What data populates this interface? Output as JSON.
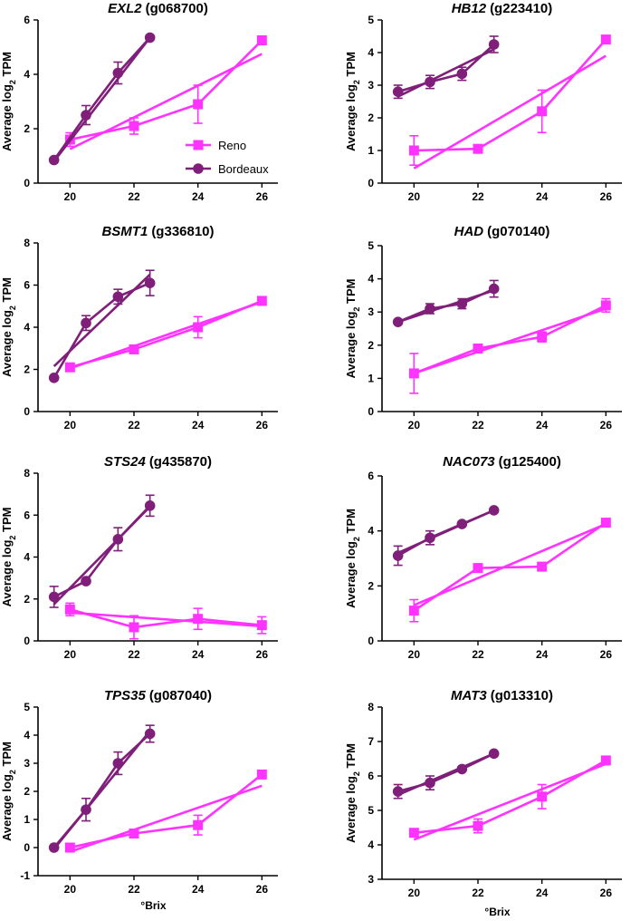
{
  "colors": {
    "reno": "#ff33ff",
    "bordeaux": "#7f1f7a",
    "axis": "#000000"
  },
  "legend": {
    "items": [
      {
        "name": "Reno",
        "marker": "square"
      },
      {
        "name": "Bordeaux",
        "marker": "circle"
      }
    ]
  },
  "x_axis_title": "°Brix",
  "chart_data": [
    {
      "type": "line",
      "gene": "EXL2",
      "gene_id": "(g068700)",
      "ylabel": "Average log",
      "ylabel_sub": "2",
      "ylabel_suffix": " TPM",
      "xlim": [
        19,
        26.5
      ],
      "xticks": [
        "20",
        "22",
        "24",
        "26"
      ],
      "ylim": [
        0,
        6
      ],
      "yticks": [
        "0",
        "2",
        "4",
        "6"
      ],
      "series": [
        {
          "name": "Reno",
          "x": [
            20,
            22,
            24,
            26
          ],
          "y": [
            1.6,
            2.1,
            2.9,
            5.25
          ],
          "err": [
            0.25,
            0.3,
            0.7,
            0.1
          ],
          "fit": [
            [
              20,
              1.25
            ],
            [
              26,
              4.75
            ]
          ]
        },
        {
          "name": "Bordeaux",
          "x": [
            19.5,
            20.5,
            21.5,
            22.5
          ],
          "y": [
            0.85,
            2.5,
            4.05,
            5.35
          ],
          "err": [
            0,
            0.35,
            0.4,
            0
          ],
          "fit": [
            [
              19.5,
              0.8
            ],
            [
              22.5,
              5.35
            ]
          ]
        }
      ]
    },
    {
      "type": "line",
      "gene": "HB12",
      "gene_id": "(g223410)",
      "ylabel": "Average log",
      "ylabel_sub": "2",
      "ylabel_suffix": " TPM",
      "xlim": [
        19,
        26.5
      ],
      "xticks": [
        "20",
        "22",
        "24",
        "26"
      ],
      "ylim": [
        0,
        5
      ],
      "yticks": [
        "0",
        "1",
        "2",
        "3",
        "4",
        "5"
      ],
      "series": [
        {
          "name": "Reno",
          "x": [
            20,
            22,
            24,
            26
          ],
          "y": [
            1.0,
            1.05,
            2.2,
            4.4
          ],
          "err": [
            0.45,
            0.05,
            0.65,
            0.05
          ],
          "fit": [
            [
              20,
              0.45
            ],
            [
              26,
              3.9
            ]
          ]
        },
        {
          "name": "Bordeaux",
          "x": [
            19.5,
            20.5,
            21.5,
            22.5
          ],
          "y": [
            2.8,
            3.1,
            3.35,
            4.25
          ],
          "err": [
            0.2,
            0.2,
            0.2,
            0.25
          ],
          "fit": [
            [
              19.5,
              2.65
            ],
            [
              22.5,
              4.1
            ]
          ]
        }
      ]
    },
    {
      "type": "line",
      "gene": "BSMT1",
      "gene_id": "(g336810)",
      "ylabel": "Average log",
      "ylabel_sub": "2",
      "ylabel_suffix": " TPM",
      "xlim": [
        19,
        26.5
      ],
      "xticks": [
        "20",
        "22",
        "24",
        "26"
      ],
      "ylim": [
        0,
        8
      ],
      "yticks": [
        "0",
        "2",
        "4",
        "6",
        "8"
      ],
      "series": [
        {
          "name": "Reno",
          "x": [
            20,
            22,
            24,
            26
          ],
          "y": [
            2.1,
            2.95,
            4.0,
            5.25
          ],
          "err": [
            0.15,
            0.15,
            0.5,
            0.1
          ],
          "fit": [
            [
              20,
              2.05
            ],
            [
              26,
              5.2
            ]
          ]
        },
        {
          "name": "Bordeaux",
          "x": [
            19.5,
            20.5,
            21.5,
            22.5
          ],
          "y": [
            1.6,
            4.2,
            5.45,
            6.1
          ],
          "err": [
            0,
            0.35,
            0.35,
            0.6
          ],
          "fit": [
            [
              19.5,
              2.15
            ],
            [
              22.5,
              6.5
            ]
          ]
        }
      ]
    },
    {
      "type": "line",
      "gene": "HAD",
      "gene_id": "(g070140)",
      "ylabel": "Average log",
      "ylabel_sub": "2",
      "ylabel_suffix": " TPM",
      "xlim": [
        19,
        26.5
      ],
      "xticks": [
        "20",
        "22",
        "24",
        "26"
      ],
      "ylim": [
        0,
        5
      ],
      "yticks": [
        "0",
        "1",
        "2",
        "3",
        "4",
        "5"
      ],
      "series": [
        {
          "name": "Reno",
          "x": [
            20,
            22,
            24,
            26
          ],
          "y": [
            1.15,
            1.9,
            2.25,
            3.2
          ],
          "err": [
            0.6,
            0.1,
            0.15,
            0.2
          ],
          "fit": [
            [
              20,
              1.15
            ],
            [
              26,
              3.1
            ]
          ]
        },
        {
          "name": "Bordeaux",
          "x": [
            19.5,
            20.5,
            21.5,
            22.5
          ],
          "y": [
            2.7,
            3.1,
            3.25,
            3.7
          ],
          "err": [
            0,
            0.15,
            0.15,
            0.25
          ],
          "fit": [
            [
              19.5,
              2.7
            ],
            [
              22.5,
              3.65
            ]
          ]
        }
      ]
    },
    {
      "type": "line",
      "gene": "STS24",
      "gene_id": "(g435870)",
      "ylabel": "Average log",
      "ylabel_sub": "2",
      "ylabel_suffix": " TPM",
      "xlim": [
        19,
        26.5
      ],
      "xticks": [
        "20",
        "22",
        "24",
        "26"
      ],
      "ylim": [
        0,
        8
      ],
      "yticks": [
        "0",
        "2",
        "4",
        "6",
        "8"
      ],
      "series": [
        {
          "name": "Reno",
          "x": [
            20,
            22,
            24,
            26
          ],
          "y": [
            1.5,
            0.65,
            1.05,
            0.75
          ],
          "err": [
            0.3,
            0.55,
            0.5,
            0.4
          ],
          "fit": [
            [
              20,
              1.35
            ],
            [
              26,
              0.7
            ]
          ]
        },
        {
          "name": "Bordeaux",
          "x": [
            19.5,
            20.5,
            21.5,
            22.5
          ],
          "y": [
            2.1,
            2.85,
            4.85,
            6.45
          ],
          "err": [
            0.5,
            0,
            0.55,
            0.5
          ],
          "fit": [
            [
              19.5,
              1.75
            ],
            [
              22.5,
              6.4
            ]
          ]
        }
      ]
    },
    {
      "type": "line",
      "gene": "NAC073",
      "gene_id": "(g125400)",
      "ylabel": "Average log",
      "ylabel_sub": "2",
      "ylabel_suffix": " TPM",
      "xlim": [
        19,
        26.5
      ],
      "xticks": [
        "20",
        "22",
        "24",
        "26"
      ],
      "ylim": [
        0,
        6
      ],
      "yticks": [
        "0",
        "2",
        "4",
        "6"
      ],
      "series": [
        {
          "name": "Reno",
          "x": [
            20,
            22,
            24,
            26
          ],
          "y": [
            1.1,
            2.65,
            2.7,
            4.3
          ],
          "err": [
            0.4,
            0.05,
            0.05,
            0.1
          ],
          "fit": [
            [
              20,
              1.3
            ],
            [
              26,
              4.25
            ]
          ]
        },
        {
          "name": "Bordeaux",
          "x": [
            19.5,
            20.5,
            21.5,
            22.5
          ],
          "y": [
            3.1,
            3.75,
            4.25,
            4.75
          ],
          "err": [
            0.35,
            0.25,
            0,
            0
          ],
          "fit": [
            [
              19.5,
              3.2
            ],
            [
              22.5,
              4.75
            ]
          ]
        }
      ]
    },
    {
      "type": "line",
      "gene": "TPS35",
      "gene_id": "(g087040)",
      "ylabel": "Average log",
      "ylabel_sub": "2",
      "ylabel_suffix": " TPM",
      "xlim": [
        19,
        26.5
      ],
      "xticks": [
        "20",
        "22",
        "24",
        "26"
      ],
      "ylim": [
        -1,
        5
      ],
      "yticks": [
        "-1",
        "0",
        "1",
        "2",
        "3",
        "4",
        "5"
      ],
      "xlabel": "°Brix",
      "series": [
        {
          "name": "Reno",
          "x": [
            20,
            22,
            24,
            26
          ],
          "y": [
            0.0,
            0.5,
            0.8,
            2.6
          ],
          "err": [
            0.05,
            0.1,
            0.35,
            0.05
          ],
          "fit": [
            [
              20,
              -0.15
            ],
            [
              26,
              2.2
            ]
          ]
        },
        {
          "name": "Bordeaux",
          "x": [
            19.5,
            20.5,
            21.5,
            22.5
          ],
          "y": [
            0.0,
            1.35,
            3.0,
            4.05
          ],
          "err": [
            0,
            0.4,
            0.4,
            0.3
          ],
          "fit": [
            [
              19.5,
              -0.05
            ],
            [
              22.5,
              4.15
            ]
          ]
        }
      ]
    },
    {
      "type": "line",
      "gene": "MAT3",
      "gene_id": "(g013310)",
      "ylabel": "Average log",
      "ylabel_sub": "2",
      "ylabel_suffix": " TPM",
      "xlim": [
        19,
        26.5
      ],
      "xticks": [
        "20",
        "22",
        "24",
        "26"
      ],
      "ylim": [
        3,
        8
      ],
      "yticks": [
        "3",
        "4",
        "5",
        "6",
        "7",
        "8"
      ],
      "xlabel": "°Brix",
      "series": [
        {
          "name": "Reno",
          "x": [
            20,
            22,
            24,
            26
          ],
          "y": [
            4.35,
            4.55,
            5.4,
            6.45
          ],
          "err": [
            0.05,
            0.2,
            0.35,
            0.05
          ],
          "fit": [
            [
              20,
              4.15
            ],
            [
              26,
              6.35
            ]
          ]
        },
        {
          "name": "Bordeaux",
          "x": [
            19.5,
            20.5,
            21.5,
            22.5
          ],
          "y": [
            5.55,
            5.8,
            6.2,
            6.65
          ],
          "err": [
            0.2,
            0.2,
            0,
            0
          ],
          "fit": [
            [
              19.5,
              5.45
            ],
            [
              22.5,
              6.65
            ]
          ]
        }
      ]
    }
  ]
}
